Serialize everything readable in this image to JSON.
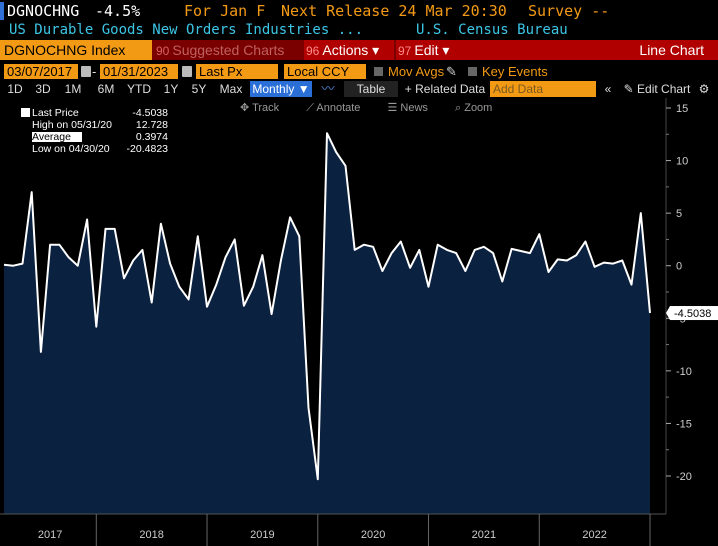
{
  "header": {
    "ticker": "DGNOCHNG",
    "change": "-4.5%",
    "period": "For Jan F",
    "next_release": "Next Release 24 Mar 20:30",
    "survey": "Survey --",
    "description": "US Durable Goods New Orders Industries ...",
    "source": "U.S. Census Bureau"
  },
  "toolbar": {
    "index_label": "DGNOCHNG Index",
    "suggested_num": "90",
    "suggested_label": "Suggested Charts",
    "actions_num": "96",
    "actions_label": "Actions ▾",
    "edit_num": "97",
    "edit_label": "Edit ▾",
    "chart_type": "Line Chart"
  },
  "params": {
    "start_date": "03/07/2017",
    "end_date": "01/31/2023",
    "field": "Last Px",
    "currency": "Local CCY",
    "mov_avgs": "Mov Avgs",
    "key_events": "Key Events"
  },
  "ranges": [
    "1D",
    "3D",
    "1M",
    "6M",
    "YTD",
    "1Y",
    "5Y",
    "Max"
  ],
  "frequency": "Monthly ▼",
  "buttons": {
    "table": "Table",
    "related": "+ Related Data",
    "add_data_placeholder": "Add Data",
    "edit_chart": "Edit Chart"
  },
  "mini_tools": {
    "track": "Track",
    "annotate": "Annotate",
    "news": "News",
    "zoom": "Zoom"
  },
  "legend": {
    "last_price_label": "Last Price",
    "last_price_value": "-4.5038",
    "high_label": "High on 05/31/20",
    "high_value": "12.728",
    "average_label": "Average",
    "average_value": "0.3974",
    "low_label": "Low on 04/30/20",
    "low_value": "-20.4823"
  },
  "colors": {
    "accent_orange": "#f39a15",
    "toolbar_red": "#b00000",
    "title_cyan": "#3cc6e6",
    "area_fill": "#0b2140",
    "line": "#ffffff"
  },
  "chart_data": {
    "type": "area",
    "ylim": [
      -22.5,
      15
    ],
    "yticks": [
      15,
      10,
      5,
      0,
      -5,
      -10,
      -15,
      -20
    ],
    "xticks": [
      "2017",
      "2018",
      "2019",
      "2020",
      "2021",
      "2022"
    ],
    "last_value_label": "-4.5038",
    "series": [
      {
        "x_start": "2017-03",
        "values": [
          0.1,
          0.0,
          0.2,
          7.0,
          -8.2,
          2.0,
          2.0,
          0.8,
          0.0,
          4.4,
          -5.8,
          3.5,
          3.5,
          -1.2,
          0.5,
          1.5,
          -3.5,
          4.0,
          0.2,
          -2.0,
          -3.2,
          2.8,
          -3.9,
          -1.8,
          0.8,
          2.5,
          -3.8,
          -2.0,
          1.0,
          -4.6,
          0.5,
          4.6,
          2.8,
          -13.5,
          -20.3,
          12.6,
          10.8,
          9.5,
          1.5,
          2.0,
          1.8,
          -0.5,
          1.2,
          2.3,
          -0.2,
          1.5,
          -2.0,
          2.0,
          1.5,
          1.2,
          -0.5,
          1.5,
          1.8,
          1.2,
          -1.5,
          1.6,
          1.4,
          1.2,
          3.0,
          -0.6,
          0.6,
          0.5,
          1.0,
          2.3,
          -0.1,
          0.3,
          0.2,
          0.5,
          -1.8,
          5.0,
          -4.5
        ]
      }
    ]
  }
}
